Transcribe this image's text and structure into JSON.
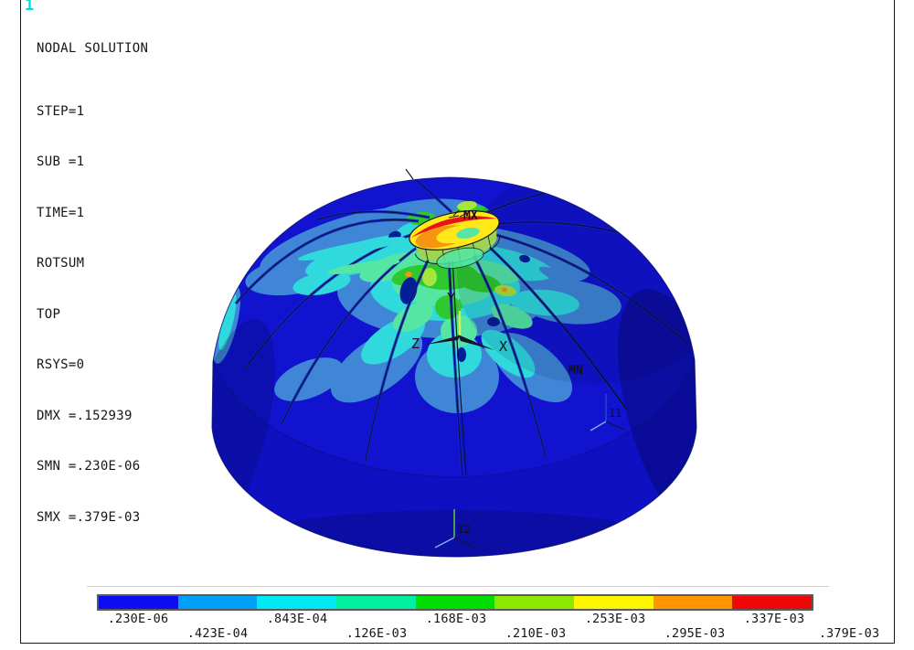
{
  "window": {
    "plot_number": "1"
  },
  "info": {
    "title": "NODAL SOLUTION",
    "lines": [
      "STEP=1",
      "SUB =1",
      "TIME=1",
      "ROTSUM",
      "TOP",
      "RSYS=0",
      "DMX =.152939",
      "SMN =.230E-06",
      "SMX =.379E-03"
    ]
  },
  "model": {
    "labels": {
      "max": "MX",
      "min": "MN",
      "axis_y": "Y",
      "axis_z": "Z",
      "axis_x": "X",
      "cs_11": "11",
      "cs_12": "12"
    },
    "palette": {
      "dome_blue": "#1113CE",
      "cylinder_blue": "#0E10C2",
      "shade_navy": "#01032E",
      "contour_lightblue": "#3F87D6",
      "contour_cyan": "#2FD9DC",
      "contour_spring": "#55E6A4",
      "contour_green": "#2EC92E",
      "contour_chartreuse": "#A6E53C",
      "contour_yellow": "#FFE81A",
      "contour_orange": "#F79410",
      "contour_red": "#E81515",
      "ring_band": "#9ED455",
      "patch_navy": "#041E96",
      "rib_edge": "#0A1040",
      "rib_body": "#1526C8",
      "edge_line": "#0A0F6E",
      "axis_shaft_yellow": "#D9F23C",
      "axis_tip_green": "#35C435",
      "axis_dark": "#15162E",
      "cs_blue": "#2B49C8",
      "cs_lightblue": "#7DB2F0",
      "cs_green": "#57C13A",
      "label_ink": "#101020",
      "plot_number_cyan": "#00DCDC"
    }
  },
  "legend": {
    "colors": [
      "#0D0DF2",
      "#00A0F8",
      "#00E9F5",
      "#00EFA0",
      "#00DE00",
      "#8DE800",
      "#FFF500",
      "#FF9500",
      "#EE0505"
    ],
    "labels": [
      ".230E-06",
      ".423E-04",
      ".843E-04",
      ".126E-03",
      ".168E-03",
      ".210E-03",
      ".253E-03",
      ".295E-03",
      ".337E-03",
      ".379E-03"
    ]
  }
}
